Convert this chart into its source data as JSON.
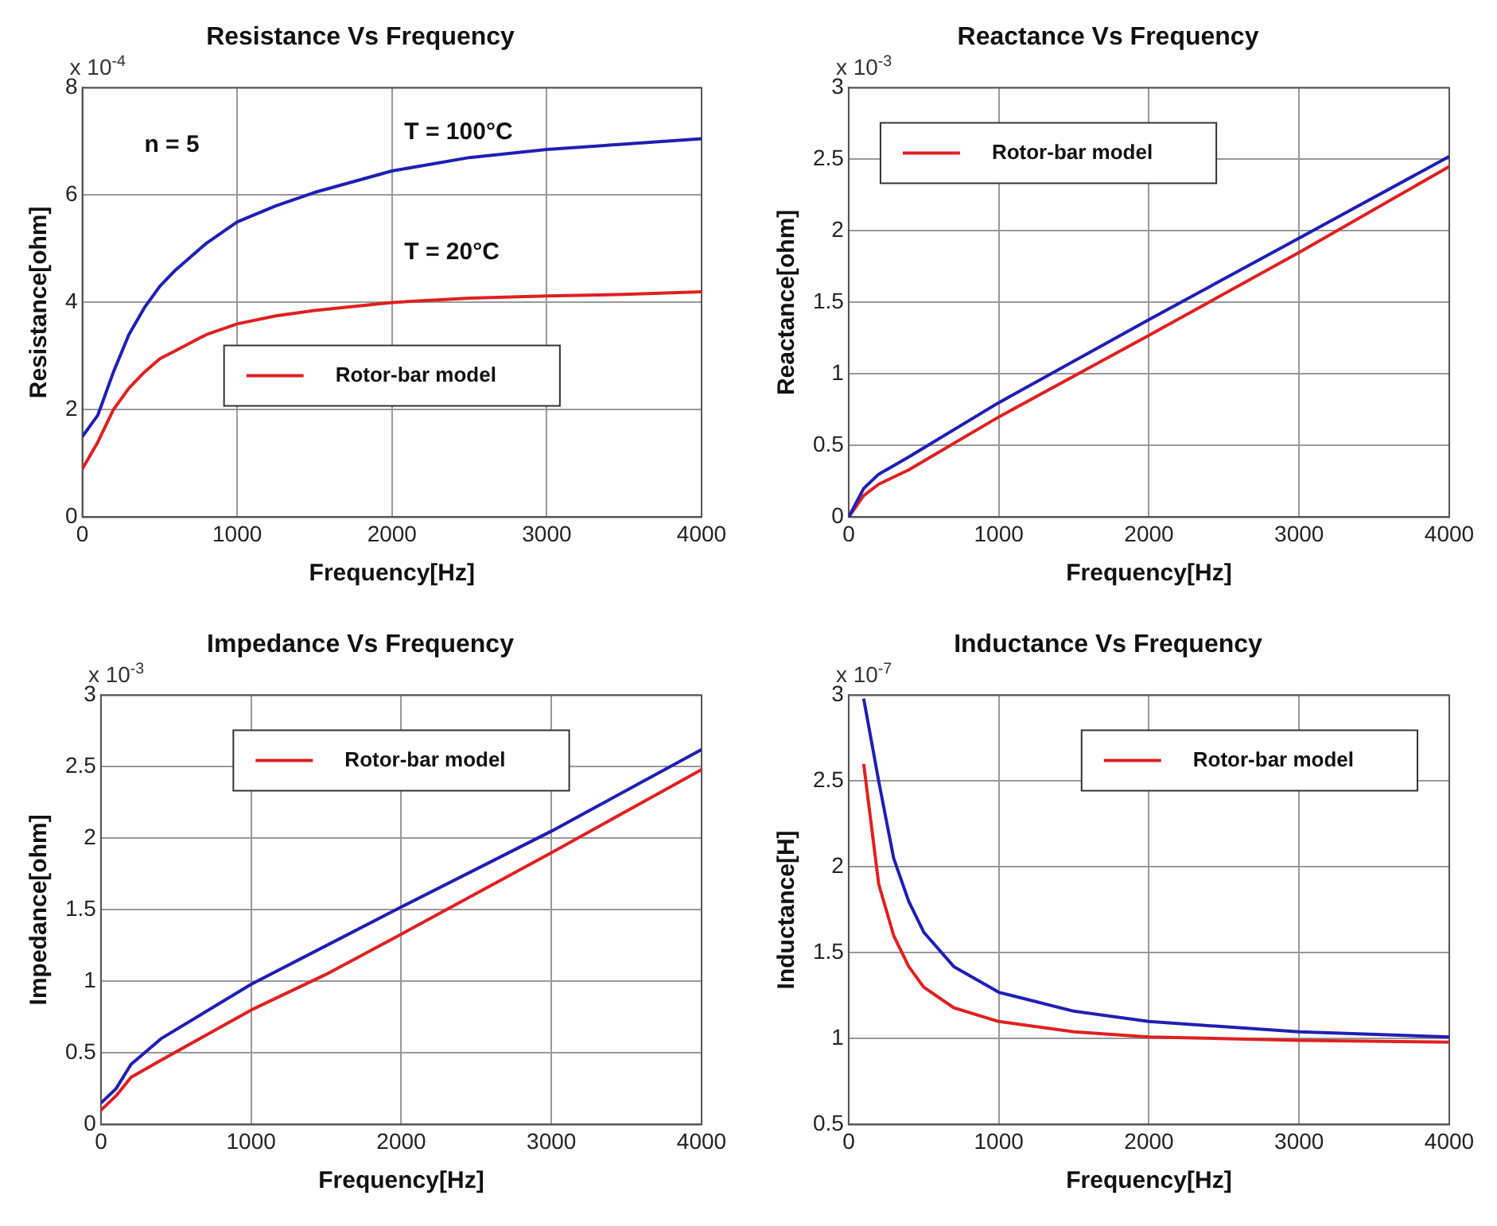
{
  "chart_data": [
    {
      "type": "line",
      "title": "Resistance Vs Frequency",
      "xlabel": "Frequency[Hz]",
      "ylabel": "Resistance[ohm]",
      "xlim": [
        0,
        4000
      ],
      "xticks": [
        0,
        1000,
        2000,
        3000,
        4000
      ],
      "ylim": [
        0,
        8
      ],
      "yticks": [
        0,
        2,
        4,
        6,
        8
      ],
      "grid": true,
      "legend": "bottom",
      "line_style": "solid",
      "annotations": [
        "x 10$^{-4}$",
        "n = 5",
        "T = 100°C",
        "T = 20°C"
      ],
      "series": [
        {
          "color": "#1f1fb4",
          "x": [
            0,
            100,
            200,
            300,
            400,
            500,
            600,
            800,
            1000,
            1250,
            1500,
            2000,
            2500,
            3000,
            3500,
            4000
          ],
          "values": [
            1.5,
            1.9,
            2.7,
            3.4,
            3.9,
            4.3,
            4.6,
            5.1,
            5.5,
            5.8,
            6.05,
            6.45,
            6.7,
            6.85,
            6.95,
            7.05
          ]
        },
        {
          "name": "Rotor-bar model",
          "color": "#e02020",
          "x": [
            0,
            100,
            200,
            300,
            400,
            500,
            600,
            800,
            1000,
            1250,
            1500,
            2000,
            2500,
            3000,
            3500,
            4000
          ],
          "values": [
            0.9,
            1.4,
            2.0,
            2.4,
            2.7,
            2.95,
            3.1,
            3.4,
            3.6,
            3.75,
            3.85,
            4.0,
            4.08,
            4.12,
            4.15,
            4.2
          ]
        }
      ]
    },
    {
      "type": "line",
      "title": "Reactance Vs Frequency",
      "xlabel": "Frequency[Hz]",
      "ylabel": "Reactance[ohm]",
      "xlim": [
        0,
        4000
      ],
      "xticks": [
        0,
        1000,
        2000,
        3000,
        4000
      ],
      "ylim": [
        0,
        3
      ],
      "yticks": [
        0,
        0.5,
        1,
        1.5,
        2,
        2.5,
        3
      ],
      "grid": true,
      "legend": "top left",
      "line_style": "solid",
      "annotations": [
        "x 10$^{-3}$"
      ],
      "series": [
        {
          "color": "#1f1fb4",
          "x": [
            0,
            100,
            200,
            400,
            1000,
            2000,
            3000,
            4000
          ],
          "values": [
            0,
            0.2,
            0.3,
            0.42,
            0.8,
            1.38,
            1.95,
            2.52
          ]
        },
        {
          "name": "Rotor-bar model",
          "color": "#e02020",
          "x": [
            0,
            100,
            200,
            400,
            1000,
            2000,
            3000,
            4000
          ],
          "values": [
            0,
            0.15,
            0.23,
            0.33,
            0.7,
            1.27,
            1.85,
            2.45
          ]
        }
      ]
    },
    {
      "type": "line",
      "title": "Impedance Vs Frequency",
      "xlabel": "Frequency[Hz]",
      "ylabel": "Impedance[ohm]",
      "xlim": [
        0,
        4000
      ],
      "xticks": [
        0,
        1000,
        2000,
        3000,
        4000
      ],
      "ylim": [
        0,
        3
      ],
      "yticks": [
        0,
        0.5,
        1,
        1.5,
        2,
        2.5,
        3
      ],
      "grid": true,
      "legend": "top",
      "line_style": "solid",
      "annotations": [
        "x 10$^{-3}$"
      ],
      "series": [
        {
          "color": "#1f1fb4",
          "x": [
            0,
            100,
            200,
            400,
            1000,
            1500,
            2000,
            3000,
            4000
          ],
          "values": [
            0.15,
            0.25,
            0.42,
            0.6,
            0.98,
            1.25,
            1.52,
            2.05,
            2.62
          ]
        },
        {
          "name": "Rotor-bar model",
          "color": "#e02020",
          "x": [
            0,
            100,
            200,
            400,
            1000,
            1500,
            2000,
            3000,
            4000
          ],
          "values": [
            0.1,
            0.2,
            0.33,
            0.45,
            0.8,
            1.05,
            1.33,
            1.9,
            2.48
          ]
        }
      ]
    },
    {
      "type": "line",
      "title": "Inductance Vs Frequency",
      "xlabel": "Frequency[Hz]",
      "ylabel": "Inductance[H]",
      "xlim": [
        0,
        4000
      ],
      "xticks": [
        0,
        1000,
        2000,
        3000,
        4000
      ],
      "ylim": [
        0.5,
        3
      ],
      "yticks": [
        0.5,
        1,
        1.5,
        2,
        2.5,
        3
      ],
      "grid": true,
      "legend": "top right",
      "line_style": "solid",
      "annotations": [
        "x 10$^{-7}$"
      ],
      "series": [
        {
          "color": "#1f1fb4",
          "x": [
            100,
            200,
            300,
            400,
            500,
            700,
            1000,
            1500,
            2000,
            3000,
            4000
          ],
          "values": [
            2.98,
            2.5,
            2.05,
            1.8,
            1.62,
            1.42,
            1.27,
            1.16,
            1.1,
            1.04,
            1.01
          ]
        },
        {
          "name": "Rotor-bar model",
          "color": "#e02020",
          "x": [
            100,
            200,
            300,
            400,
            500,
            700,
            1000,
            1500,
            2000,
            3000,
            4000
          ],
          "values": [
            2.6,
            1.9,
            1.6,
            1.42,
            1.3,
            1.18,
            1.1,
            1.04,
            1.01,
            0.99,
            0.98
          ]
        }
      ]
    }
  ]
}
